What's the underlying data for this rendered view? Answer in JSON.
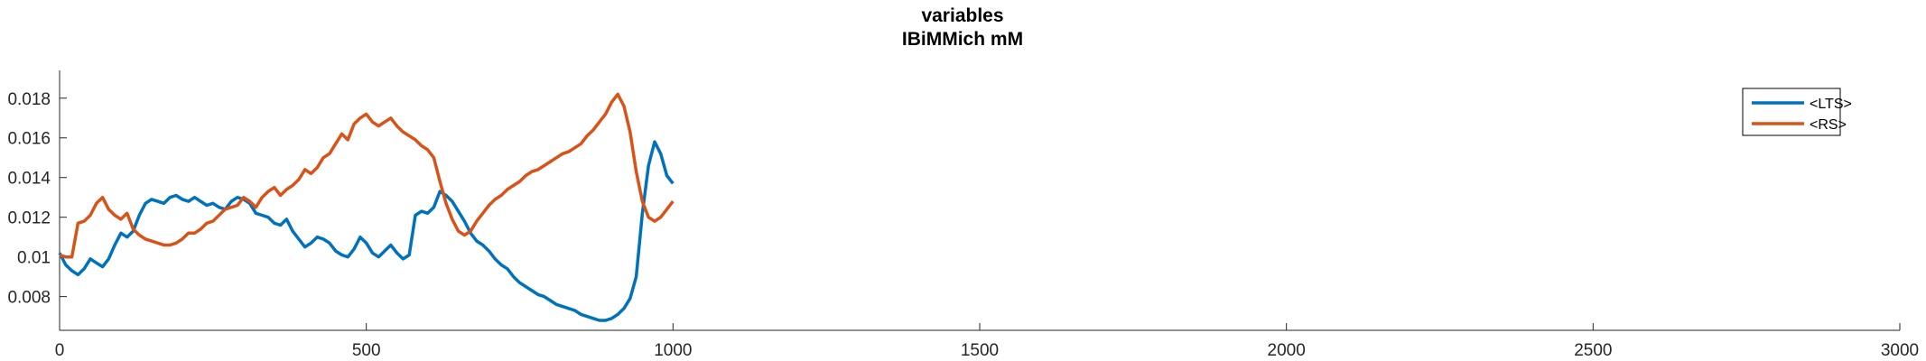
{
  "chart_data": {
    "type": "line",
    "title": "variables",
    "subtitle": "IBiMMich mM",
    "xlabel": "",
    "ylabel": "",
    "xlim": [
      0,
      3000
    ],
    "ylim": [
      0.0063,
      0.0194
    ],
    "xticks": [
      0,
      500,
      1000,
      1500,
      2000,
      2500,
      3000
    ],
    "xtick_labels": [
      "0",
      "500",
      "1000",
      "1500",
      "2000",
      "2500",
      "3000"
    ],
    "yticks": [
      0.008,
      0.01,
      0.012,
      0.014,
      0.016,
      0.018
    ],
    "ytick_labels": [
      "0.008",
      "0.01",
      "0.012",
      "0.014",
      "0.016",
      "0.018"
    ],
    "grid": false,
    "legend_position": "top-right",
    "series": [
      {
        "name": "<LTS>",
        "color": "#0072BD",
        "points": [
          [
            0,
            0.0102
          ],
          [
            10,
            0.0096
          ],
          [
            20,
            0.0093
          ],
          [
            30,
            0.0091
          ],
          [
            40,
            0.0094
          ],
          [
            50,
            0.0099
          ],
          [
            60,
            0.0097
          ],
          [
            70,
            0.0095
          ],
          [
            80,
            0.0099
          ],
          [
            90,
            0.0106
          ],
          [
            100,
            0.0112
          ],
          [
            110,
            0.011
          ],
          [
            120,
            0.0113
          ],
          [
            130,
            0.0121
          ],
          [
            140,
            0.0127
          ],
          [
            150,
            0.0129
          ],
          [
            160,
            0.0128
          ],
          [
            170,
            0.0127
          ],
          [
            180,
            0.013
          ],
          [
            190,
            0.0131
          ],
          [
            200,
            0.0129
          ],
          [
            210,
            0.0128
          ],
          [
            220,
            0.013
          ],
          [
            230,
            0.0128
          ],
          [
            240,
            0.0126
          ],
          [
            250,
            0.0127
          ],
          [
            260,
            0.0125
          ],
          [
            270,
            0.0124
          ],
          [
            280,
            0.0128
          ],
          [
            290,
            0.013
          ],
          [
            300,
            0.0129
          ],
          [
            310,
            0.0127
          ],
          [
            320,
            0.0122
          ],
          [
            330,
            0.0121
          ],
          [
            340,
            0.012
          ],
          [
            350,
            0.0117
          ],
          [
            360,
            0.0116
          ],
          [
            370,
            0.0119
          ],
          [
            380,
            0.0113
          ],
          [
            390,
            0.0109
          ],
          [
            400,
            0.0105
          ],
          [
            410,
            0.0107
          ],
          [
            420,
            0.011
          ],
          [
            430,
            0.0109
          ],
          [
            440,
            0.0107
          ],
          [
            450,
            0.0103
          ],
          [
            460,
            0.0101
          ],
          [
            470,
            0.01
          ],
          [
            480,
            0.0104
          ],
          [
            490,
            0.011
          ],
          [
            500,
            0.0107
          ],
          [
            510,
            0.0102
          ],
          [
            520,
            0.01
          ],
          [
            530,
            0.0103
          ],
          [
            540,
            0.0106
          ],
          [
            550,
            0.0102
          ],
          [
            560,
            0.0099
          ],
          [
            570,
            0.0101
          ],
          [
            580,
            0.0121
          ],
          [
            590,
            0.0123
          ],
          [
            600,
            0.0122
          ],
          [
            610,
            0.0125
          ],
          [
            620,
            0.0133
          ],
          [
            630,
            0.0131
          ],
          [
            640,
            0.0128
          ],
          [
            650,
            0.0123
          ],
          [
            660,
            0.0118
          ],
          [
            670,
            0.0112
          ],
          [
            680,
            0.0108
          ],
          [
            690,
            0.0106
          ],
          [
            700,
            0.0103
          ],
          [
            710,
            0.0099
          ],
          [
            720,
            0.0096
          ],
          [
            730,
            0.0094
          ],
          [
            740,
            0.009
          ],
          [
            750,
            0.0087
          ],
          [
            760,
            0.0085
          ],
          [
            770,
            0.0083
          ],
          [
            780,
            0.0081
          ],
          [
            790,
            0.008
          ],
          [
            800,
            0.0078
          ],
          [
            810,
            0.0076
          ],
          [
            820,
            0.0075
          ],
          [
            830,
            0.0074
          ],
          [
            840,
            0.0073
          ],
          [
            850,
            0.0071
          ],
          [
            860,
            0.007
          ],
          [
            870,
            0.0069
          ],
          [
            880,
            0.0068
          ],
          [
            890,
            0.0068
          ],
          [
            900,
            0.0069
          ],
          [
            910,
            0.0071
          ],
          [
            920,
            0.0074
          ],
          [
            930,
            0.0079
          ],
          [
            940,
            0.009
          ],
          [
            950,
            0.0122
          ],
          [
            960,
            0.0146
          ],
          [
            970,
            0.0158
          ],
          [
            980,
            0.0152
          ],
          [
            990,
            0.0141
          ],
          [
            1000,
            0.0137
          ]
        ]
      },
      {
        "name": "<RS>",
        "color": "#D95319",
        "points": [
          [
            0,
            0.0101
          ],
          [
            10,
            0.01
          ],
          [
            20,
            0.01
          ],
          [
            30,
            0.0117
          ],
          [
            40,
            0.0118
          ],
          [
            50,
            0.0121
          ],
          [
            60,
            0.0127
          ],
          [
            70,
            0.013
          ],
          [
            80,
            0.0124
          ],
          [
            90,
            0.0121
          ],
          [
            100,
            0.0119
          ],
          [
            110,
            0.0122
          ],
          [
            120,
            0.0114
          ],
          [
            130,
            0.0111
          ],
          [
            140,
            0.0109
          ],
          [
            150,
            0.0108
          ],
          [
            160,
            0.0107
          ],
          [
            170,
            0.0106
          ],
          [
            180,
            0.0106
          ],
          [
            190,
            0.0107
          ],
          [
            200,
            0.0109
          ],
          [
            210,
            0.0112
          ],
          [
            220,
            0.0112
          ],
          [
            230,
            0.0114
          ],
          [
            240,
            0.0117
          ],
          [
            250,
            0.0118
          ],
          [
            260,
            0.0121
          ],
          [
            270,
            0.0124
          ],
          [
            280,
            0.0125
          ],
          [
            290,
            0.0126
          ],
          [
            300,
            0.013
          ],
          [
            310,
            0.0128
          ],
          [
            320,
            0.0125
          ],
          [
            330,
            0.013
          ],
          [
            340,
            0.0133
          ],
          [
            350,
            0.0135
          ],
          [
            360,
            0.0131
          ],
          [
            370,
            0.0134
          ],
          [
            380,
            0.0136
          ],
          [
            390,
            0.0139
          ],
          [
            400,
            0.0144
          ],
          [
            410,
            0.0142
          ],
          [
            420,
            0.0145
          ],
          [
            430,
            0.015
          ],
          [
            440,
            0.0152
          ],
          [
            450,
            0.0157
          ],
          [
            460,
            0.0162
          ],
          [
            470,
            0.0159
          ],
          [
            480,
            0.0167
          ],
          [
            490,
            0.017
          ],
          [
            500,
            0.0172
          ],
          [
            510,
            0.0168
          ],
          [
            520,
            0.0166
          ],
          [
            530,
            0.0168
          ],
          [
            540,
            0.017
          ],
          [
            550,
            0.0166
          ],
          [
            560,
            0.0163
          ],
          [
            570,
            0.0161
          ],
          [
            580,
            0.0159
          ],
          [
            590,
            0.0156
          ],
          [
            600,
            0.0154
          ],
          [
            610,
            0.015
          ],
          [
            620,
            0.0138
          ],
          [
            630,
            0.0127
          ],
          [
            640,
            0.0119
          ],
          [
            650,
            0.0113
          ],
          [
            660,
            0.0111
          ],
          [
            670,
            0.0113
          ],
          [
            680,
            0.0118
          ],
          [
            690,
            0.0122
          ],
          [
            700,
            0.0126
          ],
          [
            710,
            0.0129
          ],
          [
            720,
            0.0131
          ],
          [
            730,
            0.0134
          ],
          [
            740,
            0.0136
          ],
          [
            750,
            0.0138
          ],
          [
            760,
            0.0141
          ],
          [
            770,
            0.0143
          ],
          [
            780,
            0.0144
          ],
          [
            790,
            0.0146
          ],
          [
            800,
            0.0148
          ],
          [
            810,
            0.015
          ],
          [
            820,
            0.0152
          ],
          [
            830,
            0.0153
          ],
          [
            840,
            0.0155
          ],
          [
            850,
            0.0157
          ],
          [
            860,
            0.0161
          ],
          [
            870,
            0.0164
          ],
          [
            880,
            0.0168
          ],
          [
            890,
            0.0172
          ],
          [
            900,
            0.0178
          ],
          [
            910,
            0.0182
          ],
          [
            920,
            0.0176
          ],
          [
            930,
            0.0163
          ],
          [
            940,
            0.0143
          ],
          [
            950,
            0.0128
          ],
          [
            960,
            0.012
          ],
          [
            970,
            0.0118
          ],
          [
            980,
            0.012
          ],
          [
            990,
            0.0124
          ],
          [
            1000,
            0.0128
          ]
        ]
      }
    ]
  },
  "legend": {
    "items": [
      "<LTS>",
      "<RS>"
    ]
  }
}
